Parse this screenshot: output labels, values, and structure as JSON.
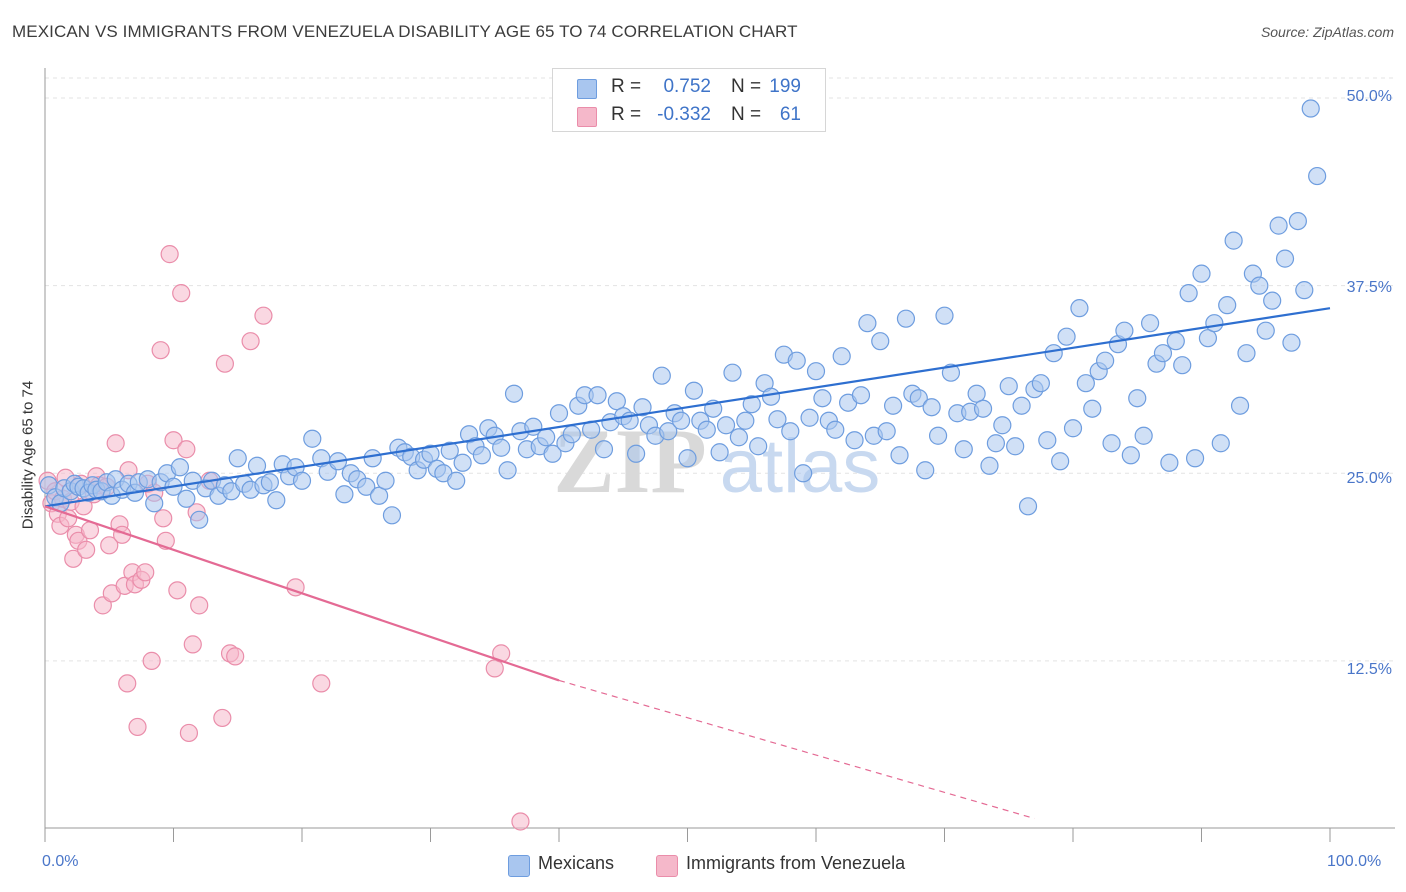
{
  "title": "MEXICAN VS IMMIGRANTS FROM VENEZUELA DISABILITY AGE 65 TO 74 CORRELATION CHART",
  "source": "Source: ZipAtlas.com",
  "watermark": {
    "part1": "ZIP",
    "part2": "atlas"
  },
  "colors": {
    "blue_fill": "#a9c6ef",
    "blue_stroke": "#6e9ddf",
    "blue_line": "#2e6fd0",
    "pink_fill": "#f5b8ca",
    "pink_stroke": "#ea8daa",
    "pink_line": "#e46a94",
    "tick_text": "#4a76c9",
    "grid": "#e3e3e3"
  },
  "stats": [
    {
      "label_r": "R =",
      "r": "0.752",
      "label_n": "N =",
      "n": "199",
      "color": "#a9c6ef"
    },
    {
      "label_r": "R =",
      "r": "-0.332",
      "label_n": "N =",
      "n": "61",
      "color": "#f5b8ca"
    }
  ],
  "legend": [
    {
      "label": "Mexicans",
      "color": "#a9c6ef"
    },
    {
      "label": "Immigrants from Venezuela",
      "color": "#f5b8ca"
    }
  ],
  "chart_data": {
    "type": "scatter",
    "xlabel": "",
    "ylabel": "Disability Age 65 to 74",
    "xlim": [
      0,
      100
    ],
    "ylim": [
      1.5,
      52
    ],
    "x_tick_labels": [
      "0.0%",
      "100.0%"
    ],
    "y_ticks": [
      12.5,
      25.0,
      37.5,
      50.0
    ],
    "y_tick_labels": [
      "12.5%",
      "25.0%",
      "37.5%",
      "50.0%"
    ],
    "grid": true,
    "series": [
      {
        "name": "Mexicans",
        "trend": {
          "x": [
            0,
            100
          ],
          "y": [
            22.8,
            36.0
          ],
          "dashed_to": null
        },
        "points": [
          [
            0.3,
            24.2
          ],
          [
            0.8,
            23.4
          ],
          [
            1.2,
            23.0
          ],
          [
            1.5,
            24.0
          ],
          [
            2.0,
            23.8
          ],
          [
            2.3,
            24.3
          ],
          [
            2.6,
            24.1
          ],
          [
            3.0,
            24.0
          ],
          [
            3.4,
            23.7
          ],
          [
            3.7,
            24.2
          ],
          [
            4.0,
            23.9
          ],
          [
            4.4,
            23.8
          ],
          [
            4.8,
            24.4
          ],
          [
            5.2,
            23.5
          ],
          [
            5.5,
            24.6
          ],
          [
            6.0,
            23.9
          ],
          [
            6.5,
            24.3
          ],
          [
            7.0,
            23.7
          ],
          [
            7.3,
            24.4
          ],
          [
            8.0,
            24.6
          ],
          [
            8.5,
            23.0
          ],
          [
            9.0,
            24.4
          ],
          [
            9.5,
            25.0
          ],
          [
            10.0,
            24.1
          ],
          [
            10.5,
            25.4
          ],
          [
            11.0,
            23.3
          ],
          [
            11.5,
            24.5
          ],
          [
            12.0,
            21.9
          ],
          [
            12.5,
            24.0
          ],
          [
            13.0,
            24.5
          ],
          [
            13.5,
            23.5
          ],
          [
            14.0,
            24.2
          ],
          [
            14.5,
            23.8
          ],
          [
            15.0,
            26.0
          ],
          [
            15.5,
            24.3
          ],
          [
            16.0,
            23.9
          ],
          [
            16.5,
            25.5
          ],
          [
            17.0,
            24.2
          ],
          [
            17.5,
            24.4
          ],
          [
            18.0,
            23.2
          ],
          [
            18.5,
            25.6
          ],
          [
            19.0,
            24.8
          ],
          [
            19.5,
            25.4
          ],
          [
            20.0,
            24.5
          ],
          [
            20.8,
            27.3
          ],
          [
            21.5,
            26.0
          ],
          [
            22.0,
            25.1
          ],
          [
            22.8,
            25.8
          ],
          [
            23.3,
            23.6
          ],
          [
            23.8,
            25.0
          ],
          [
            24.3,
            24.6
          ],
          [
            25.0,
            24.1
          ],
          [
            25.5,
            26.0
          ],
          [
            26.0,
            23.5
          ],
          [
            26.5,
            24.5
          ],
          [
            27.0,
            22.2
          ],
          [
            27.5,
            26.7
          ],
          [
            28.0,
            26.4
          ],
          [
            28.5,
            26.1
          ],
          [
            29.0,
            25.2
          ],
          [
            29.5,
            25.9
          ],
          [
            30.0,
            26.3
          ],
          [
            30.5,
            25.3
          ],
          [
            31.0,
            25.0
          ],
          [
            31.5,
            26.5
          ],
          [
            32.0,
            24.5
          ],
          [
            32.5,
            25.7
          ],
          [
            33.0,
            27.6
          ],
          [
            33.5,
            26.8
          ],
          [
            34.0,
            26.2
          ],
          [
            34.5,
            28.0
          ],
          [
            35.0,
            27.5
          ],
          [
            35.5,
            26.7
          ],
          [
            36.0,
            25.2
          ],
          [
            36.5,
            30.3
          ],
          [
            37.0,
            27.8
          ],
          [
            37.5,
            26.6
          ],
          [
            38.0,
            28.1
          ],
          [
            38.5,
            26.8
          ],
          [
            39.0,
            27.4
          ],
          [
            39.5,
            26.3
          ],
          [
            40.0,
            29.0
          ],
          [
            40.5,
            27.0
          ],
          [
            41.0,
            27.6
          ],
          [
            41.5,
            29.5
          ],
          [
            42.0,
            30.2
          ],
          [
            42.5,
            27.9
          ],
          [
            43.0,
            30.2
          ],
          [
            43.5,
            26.6
          ],
          [
            44.0,
            28.4
          ],
          [
            44.5,
            29.8
          ],
          [
            45.0,
            28.8
          ],
          [
            45.5,
            28.5
          ],
          [
            46.0,
            26.3
          ],
          [
            46.5,
            29.4
          ],
          [
            47.0,
            28.2
          ],
          [
            47.5,
            27.5
          ],
          [
            48.0,
            31.5
          ],
          [
            48.5,
            27.8
          ],
          [
            49.0,
            29.0
          ],
          [
            49.5,
            28.5
          ],
          [
            50.0,
            26.0
          ],
          [
            50.5,
            30.5
          ],
          [
            51.0,
            28.5
          ],
          [
            51.5,
            27.9
          ],
          [
            52.0,
            29.3
          ],
          [
            52.5,
            26.4
          ],
          [
            53.0,
            28.2
          ],
          [
            53.5,
            31.7
          ],
          [
            54.0,
            27.4
          ],
          [
            54.5,
            28.5
          ],
          [
            55.0,
            29.6
          ],
          [
            55.5,
            26.8
          ],
          [
            56.0,
            31.0
          ],
          [
            56.5,
            30.1
          ],
          [
            57.0,
            28.6
          ],
          [
            57.5,
            32.9
          ],
          [
            58.0,
            27.8
          ],
          [
            58.5,
            32.5
          ],
          [
            59.0,
            25.0
          ],
          [
            59.5,
            28.7
          ],
          [
            60.0,
            31.8
          ],
          [
            60.5,
            30.0
          ],
          [
            61.0,
            28.5
          ],
          [
            61.5,
            27.9
          ],
          [
            62.0,
            32.8
          ],
          [
            62.5,
            29.7
          ],
          [
            63.0,
            27.2
          ],
          [
            63.5,
            30.2
          ],
          [
            64.0,
            35.0
          ],
          [
            64.5,
            27.5
          ],
          [
            65.0,
            33.8
          ],
          [
            65.5,
            27.8
          ],
          [
            66.0,
            29.5
          ],
          [
            66.5,
            26.2
          ],
          [
            67.0,
            35.3
          ],
          [
            67.5,
            30.3
          ],
          [
            68.0,
            30.0
          ],
          [
            68.5,
            25.2
          ],
          [
            69.0,
            29.4
          ],
          [
            69.5,
            27.5
          ],
          [
            70.0,
            35.5
          ],
          [
            70.5,
            31.7
          ],
          [
            71.0,
            29.0
          ],
          [
            71.5,
            26.6
          ],
          [
            72.0,
            29.1
          ],
          [
            72.5,
            30.3
          ],
          [
            73.0,
            29.3
          ],
          [
            73.5,
            25.5
          ],
          [
            74.0,
            27.0
          ],
          [
            74.5,
            28.2
          ],
          [
            75.0,
            30.8
          ],
          [
            75.5,
            26.8
          ],
          [
            76.0,
            29.5
          ],
          [
            76.5,
            22.8
          ],
          [
            77.0,
            30.6
          ],
          [
            77.5,
            31.0
          ],
          [
            78.0,
            27.2
          ],
          [
            78.5,
            33.0
          ],
          [
            79.0,
            25.8
          ],
          [
            79.5,
            34.1
          ],
          [
            80.0,
            28.0
          ],
          [
            80.5,
            36.0
          ],
          [
            81.0,
            31.0
          ],
          [
            81.5,
            29.3
          ],
          [
            82.0,
            31.8
          ],
          [
            82.5,
            32.5
          ],
          [
            83.0,
            27.0
          ],
          [
            83.5,
            33.6
          ],
          [
            84.0,
            34.5
          ],
          [
            84.5,
            26.2
          ],
          [
            85.0,
            30.0
          ],
          [
            85.5,
            27.5
          ],
          [
            86.0,
            35.0
          ],
          [
            86.5,
            32.3
          ],
          [
            87.0,
            33.0
          ],
          [
            87.5,
            25.7
          ],
          [
            88.0,
            33.8
          ],
          [
            88.5,
            32.2
          ],
          [
            89.0,
            37.0
          ],
          [
            89.5,
            26.0
          ],
          [
            90.0,
            38.3
          ],
          [
            90.5,
            34.0
          ],
          [
            91.0,
            35.0
          ],
          [
            91.5,
            27.0
          ],
          [
            92.0,
            36.2
          ],
          [
            92.5,
            40.5
          ],
          [
            93.0,
            29.5
          ],
          [
            93.5,
            33.0
          ],
          [
            94.0,
            38.3
          ],
          [
            94.5,
            37.5
          ],
          [
            95.0,
            34.5
          ],
          [
            95.5,
            36.5
          ],
          [
            96.0,
            41.5
          ],
          [
            96.5,
            39.3
          ],
          [
            97.0,
            33.7
          ],
          [
            97.5,
            41.8
          ],
          [
            98.0,
            37.2
          ],
          [
            98.5,
            49.3
          ],
          [
            99.0,
            44.8
          ]
        ]
      },
      {
        "name": "Immigrants from Venezuela",
        "trend": {
          "x": [
            0,
            40
          ],
          "y": [
            22.8,
            11.2
          ],
          "dashed_to": [
            77,
            2.0
          ]
        },
        "points": [
          [
            0.2,
            24.5
          ],
          [
            0.5,
            23.0
          ],
          [
            0.8,
            23.8
          ],
          [
            1.0,
            22.3
          ],
          [
            1.2,
            21.5
          ],
          [
            1.4,
            23.3
          ],
          [
            1.6,
            24.7
          ],
          [
            1.8,
            22.0
          ],
          [
            2.0,
            23.1
          ],
          [
            2.2,
            19.3
          ],
          [
            2.4,
            20.9
          ],
          [
            2.6,
            20.5
          ],
          [
            2.8,
            24.3
          ],
          [
            3.0,
            22.8
          ],
          [
            3.2,
            19.9
          ],
          [
            3.5,
            21.2
          ],
          [
            3.8,
            23.6
          ],
          [
            4.0,
            24.8
          ],
          [
            4.2,
            24.2
          ],
          [
            4.5,
            16.2
          ],
          [
            4.8,
            24.1
          ],
          [
            5.0,
            20.2
          ],
          [
            5.2,
            17.0
          ],
          [
            5.5,
            27.0
          ],
          [
            5.8,
            21.6
          ],
          [
            6.0,
            20.9
          ],
          [
            6.2,
            17.5
          ],
          [
            6.4,
            11.0
          ],
          [
            6.5,
            25.2
          ],
          [
            6.8,
            18.4
          ],
          [
            7.0,
            17.6
          ],
          [
            7.2,
            8.1
          ],
          [
            7.5,
            17.9
          ],
          [
            7.8,
            18.4
          ],
          [
            8.0,
            24.3
          ],
          [
            8.3,
            12.5
          ],
          [
            8.5,
            23.7
          ],
          [
            9.0,
            33.2
          ],
          [
            9.2,
            22.0
          ],
          [
            9.4,
            20.5
          ],
          [
            9.7,
            39.6
          ],
          [
            10.0,
            27.2
          ],
          [
            10.3,
            17.2
          ],
          [
            10.6,
            37.0
          ],
          [
            11.0,
            26.6
          ],
          [
            11.2,
            7.7
          ],
          [
            11.5,
            13.6
          ],
          [
            11.8,
            22.4
          ],
          [
            12.0,
            16.2
          ],
          [
            12.8,
            24.5
          ],
          [
            13.8,
            8.7
          ],
          [
            14.0,
            32.3
          ],
          [
            14.4,
            13.0
          ],
          [
            14.8,
            12.8
          ],
          [
            16.0,
            33.8
          ],
          [
            17.0,
            35.5
          ],
          [
            19.5,
            17.4
          ],
          [
            21.5,
            11.0
          ],
          [
            35.0,
            12.0
          ],
          [
            35.5,
            13.0
          ],
          [
            37.0,
            1.8
          ]
        ]
      }
    ]
  }
}
